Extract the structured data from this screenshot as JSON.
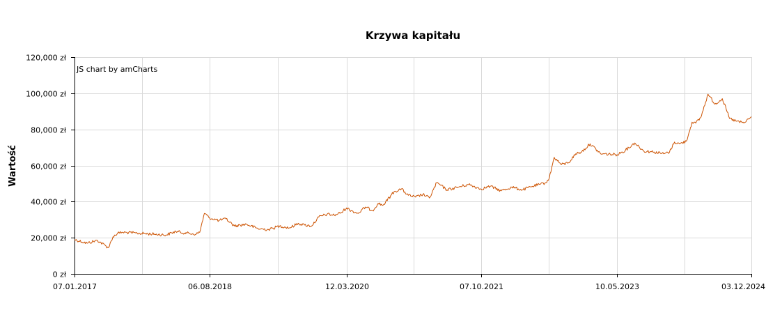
{
  "chart_data": {
    "type": "line",
    "title": "Krzywa kapitału",
    "ylabel": "Wartość",
    "xlabel": "",
    "credit": "JS chart by amCharts",
    "ylim": [
      0,
      120000
    ],
    "xlim": [
      "2017-01-07",
      "2024-12-03"
    ],
    "grid": true,
    "y_ticks": [
      {
        "value": 0,
        "label": "0 zł"
      },
      {
        "value": 20000,
        "label": "20,000 zł"
      },
      {
        "value": 40000,
        "label": "40,000 zł"
      },
      {
        "value": 60000,
        "label": "60,000 zł"
      },
      {
        "value": 80000,
        "label": "80,000 zł"
      },
      {
        "value": 100000,
        "label": "100,000 zł"
      },
      {
        "value": 120000,
        "label": "120,000 zł"
      }
    ],
    "x_ticks": [
      {
        "value": "2017-01-07",
        "label": "07.01.2017"
      },
      {
        "value": "2018-08-06",
        "label": "06.08.2018"
      },
      {
        "value": "2020-03-12",
        "label": "12.03.2020"
      },
      {
        "value": "2021-10-07",
        "label": "07.10.2021"
      },
      {
        "value": "2023-05-10",
        "label": "10.05.2023"
      },
      {
        "value": "2024-12-03",
        "label": "03.12.2024"
      }
    ],
    "series": [
      {
        "color": "#cc5200",
        "x": [
          "2017-01-07",
          "2017-03-01",
          "2017-04-15",
          "2017-06-01",
          "2017-06-20",
          "2017-07-10",
          "2017-08-01",
          "2017-10-01",
          "2017-12-15",
          "2018-02-01",
          "2018-03-15",
          "2018-05-01",
          "2018-06-10",
          "2018-06-25",
          "2018-07-15",
          "2018-08-06",
          "2018-09-15",
          "2018-10-15",
          "2018-11-20",
          "2019-01-10",
          "2019-03-01",
          "2019-04-15",
          "2019-06-01",
          "2019-07-15",
          "2019-08-20",
          "2019-09-15",
          "2019-10-15",
          "2019-11-15",
          "2019-12-20",
          "2020-01-20",
          "2020-02-20",
          "2020-03-12",
          "2020-04-01",
          "2020-05-01",
          "2020-06-01",
          "2020-07-01",
          "2020-07-25",
          "2020-08-15",
          "2020-10-01",
          "2020-11-01",
          "2020-12-01",
          "2021-01-01",
          "2021-02-01",
          "2021-03-01",
          "2021-04-01",
          "2021-05-15",
          "2021-07-01",
          "2021-08-15",
          "2021-10-07",
          "2021-11-15",
          "2022-01-01",
          "2022-02-15",
          "2022-04-01",
          "2022-05-15",
          "2022-06-15",
          "2022-07-10",
          "2022-07-25",
          "2022-08-15",
          "2022-09-15",
          "2022-10-15",
          "2022-11-15",
          "2022-12-10",
          "2023-01-15",
          "2023-03-01",
          "2023-05-10",
          "2023-06-15",
          "2023-07-25",
          "2023-09-01",
          "2023-10-15",
          "2023-11-25",
          "2023-12-20",
          "2024-01-10",
          "2024-02-01",
          "2024-03-01",
          "2024-03-25",
          "2024-04-10",
          "2024-05-01",
          "2024-06-01",
          "2024-07-01",
          "2024-08-01",
          "2024-09-01",
          "2024-10-01",
          "2024-11-01",
          "2024-12-03"
        ],
        "values": [
          19000,
          17000,
          18500,
          14500,
          20500,
          22500,
          23000,
          22500,
          22000,
          21500,
          23500,
          22500,
          22000,
          23000,
          33500,
          31000,
          29500,
          30500,
          26500,
          27500,
          25000,
          24500,
          26500,
          25500,
          28000,
          27000,
          26500,
          31500,
          33000,
          32500,
          34000,
          36500,
          35000,
          33500,
          37000,
          35000,
          39000,
          38000,
          45500,
          47000,
          43500,
          42500,
          44000,
          42000,
          50500,
          46500,
          48000,
          49500,
          47000,
          48500,
          46000,
          48000,
          46500,
          48500,
          49500,
          50500,
          53000,
          64500,
          60500,
          61500,
          66500,
          67500,
          72000,
          66500,
          66000,
          68500,
          72500,
          68000,
          67500,
          66500,
          67500,
          73000,
          72000,
          73500,
          84000,
          83500,
          86500,
          99500,
          94000,
          97000,
          86000,
          84500,
          83500,
          87000
        ]
      }
    ]
  }
}
